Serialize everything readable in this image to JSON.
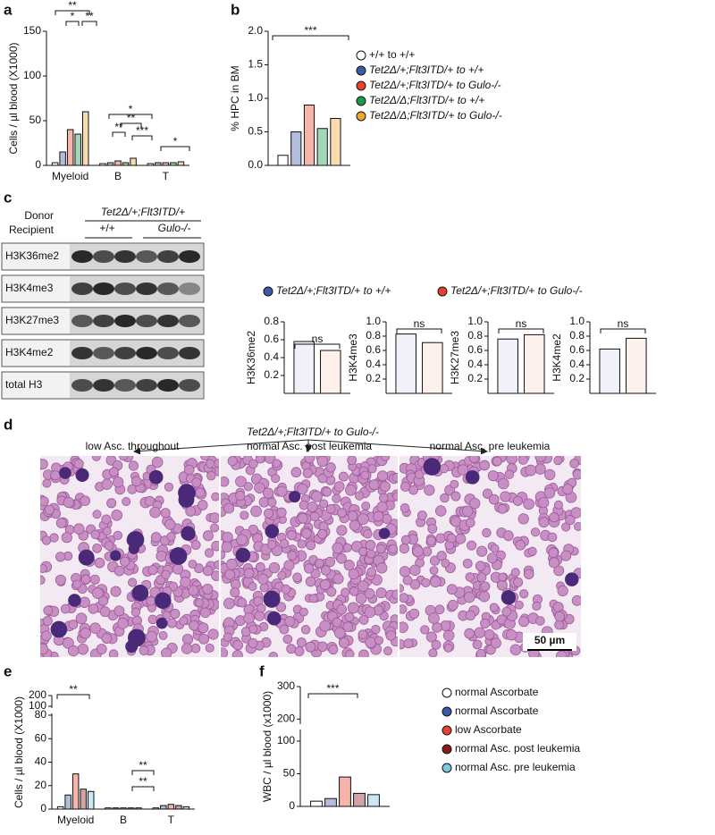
{
  "panel_labels": [
    "a",
    "b",
    "c",
    "d",
    "e",
    "f"
  ],
  "chart_data": [
    {
      "type": "bar",
      "ylabel": "Cells / µl blood (X1000)",
      "categories": [
        "Myeloid",
        "B",
        "T"
      ],
      "series": [
        {
          "color": "#ffffff",
          "values": [
            3,
            2,
            2
          ]
        },
        {
          "color": "#3b5ba5",
          "values": [
            15,
            3,
            3
          ]
        },
        {
          "color": "#e8432a",
          "values": [
            40,
            5,
            3
          ]
        },
        {
          "color": "#1e9a4c",
          "values": [
            35,
            3,
            3
          ]
        },
        {
          "color": "#f2a431",
          "values": [
            60,
            8,
            4
          ]
        }
      ],
      "ylim": [
        0,
        150
      ],
      "yticks": [
        0,
        50,
        100,
        150
      ],
      "annotations": [
        "**",
        "*",
        "**",
        "*",
        "**",
        "**",
        "***",
        "*"
      ]
    },
    {
      "type": "bar",
      "ylabel": "% HPC in BM",
      "series": [
        {
          "name": "+/+ to +/+",
          "color": "#ffffff",
          "values": [
            0.15
          ]
        },
        {
          "name": "Tet2Δ/+;Flt3ITD/+ to +/+",
          "color": "#3b5ba5",
          "values": [
            0.5
          ]
        },
        {
          "name": "Tet2Δ/+;Flt3ITD/+ to Gulo-/-",
          "color": "#e8432a",
          "values": [
            0.9
          ]
        },
        {
          "name": "Tet2Δ/Δ;Flt3ITD/+ to +/+",
          "color": "#1e9a4c",
          "values": [
            0.55
          ]
        },
        {
          "name": "Tet2Δ/Δ;Flt3ITD/+ to Gulo-/-",
          "color": "#f2a431",
          "values": [
            0.7
          ]
        }
      ],
      "ylim": [
        0,
        2
      ],
      "yticks": [
        {
          "value": 0,
          "label": "0.0"
        },
        0.5,
        {
          "value": 1,
          "label": "1.0"
        },
        1.5,
        {
          "value": 2,
          "label": "2.0"
        }
      ],
      "annotations": [
        "***"
      ]
    },
    {
      "type": "bar",
      "ylabel": "H3K36me2",
      "series": [
        {
          "color": "#dcdcf2",
          "values": [
            0.58
          ]
        },
        {
          "color": "#fcdcd0",
          "values": [
            0.48
          ]
        }
      ],
      "ylim": [
        0,
        0.8
      ],
      "yticks": [
        0.2,
        0.4,
        0.6,
        0.8
      ],
      "annotations": [
        "ns"
      ]
    },
    {
      "type": "bar",
      "ylabel": "H3K4me3",
      "series": [
        {
          "color": "#dcdcf2",
          "values": [
            0.83
          ]
        },
        {
          "color": "#fcdcd0",
          "values": [
            0.71
          ]
        }
      ],
      "ylim": [
        0,
        1
      ],
      "yticks": [
        0.2,
        0.4,
        0.6,
        0.8,
        {
          "value": 1,
          "label": "1.0"
        }
      ],
      "annotations": [
        "ns"
      ]
    },
    {
      "type": "bar",
      "ylabel": "H3K27me3",
      "series": [
        {
          "color": "#dcdcf2",
          "values": [
            0.76
          ]
        },
        {
          "color": "#fcdcd0",
          "values": [
            0.82
          ]
        }
      ],
      "ylim": [
        0,
        1
      ],
      "yticks": [
        0.2,
        0.4,
        0.6,
        0.8,
        {
          "value": 1,
          "label": "1.0"
        }
      ],
      "annotations": [
        "ns"
      ]
    },
    {
      "type": "bar",
      "ylabel": "H3K4me2",
      "series": [
        {
          "color": "#dcdcf2",
          "values": [
            0.62
          ]
        },
        {
          "color": "#fcdcd0",
          "values": [
            0.77
          ]
        }
      ],
      "ylim": [
        0,
        1
      ],
      "yticks": [
        0.2,
        0.4,
        0.6,
        0.8,
        {
          "value": 1,
          "label": "1.0"
        }
      ],
      "annotations": [
        "ns"
      ]
    },
    {
      "type": "bar",
      "ylabel": "Cells / µl blood (X1000)",
      "categories": [
        "Myeloid",
        "B",
        "T"
      ],
      "series": [
        {
          "name": "normal Ascorbate",
          "color": "#ffffff",
          "values": [
            2,
            1,
            1
          ]
        },
        {
          "name": "normal Ascorbate",
          "color": "#3b5ba5",
          "values": [
            12,
            1,
            3
          ]
        },
        {
          "name": "low Ascorbate",
          "color": "#e8432a",
          "values": [
            30,
            1,
            4
          ]
        },
        {
          "name": "normal Asc. post leukemia",
          "color": "#8b1a1a",
          "values": [
            17,
            1,
            3
          ]
        },
        {
          "name": "normal Asc. pre leukemia",
          "color": "#7ec8e3",
          "values": [
            15,
            1,
            2
          ]
        }
      ],
      "ylim": [
        0,
        200
      ],
      "ybreak": [
        80,
        100
      ],
      "yticks": [
        0,
        20,
        40,
        60,
        80,
        100,
        200
      ],
      "annotations": [
        "**",
        "**",
        "**"
      ]
    },
    {
      "type": "bar",
      "ylabel": "WBC / µl blood (x1000)",
      "values": [
        8,
        12,
        45,
        20,
        18
      ],
      "colors": [
        "#ffffff",
        "#3b5ba5",
        "#e8432a",
        "#8b1a1a",
        "#7ec8e3"
      ],
      "ylim": [
        0,
        300
      ],
      "ybreak": [
        115,
        190
      ],
      "yticks": [
        0,
        50,
        100,
        200,
        300
      ],
      "annotations": [
        "***"
      ]
    }
  ],
  "panel_c_legend": [
    {
      "name": "Tet2Δ/+;Flt3ITD/+ to +/+",
      "color": "#3b5ba5"
    },
    {
      "name": "Tet2Δ/+;Flt3ITD/+ to Gulo-/-",
      "color": "#e8432a"
    }
  ],
  "blot": {
    "donor_label": "Donor",
    "recipient_label": "Recipient",
    "donor": "Tet2Δ/+;Flt3ITD/+",
    "recipients": [
      "+/+",
      "Gulo-/-"
    ],
    "rows": [
      "H3K36me2",
      "H3K4me3",
      "H3K27me3",
      "H3K4me2",
      "total H3"
    ]
  },
  "micrographs": {
    "title": "Tet2Δ/+;Flt3ITD/+ to Gulo-/-",
    "labels": [
      "low Asc. throughout",
      "normal Asc. post leukemia",
      "normal Asc. pre leukemia"
    ],
    "scale_bar": "50 µm"
  }
}
